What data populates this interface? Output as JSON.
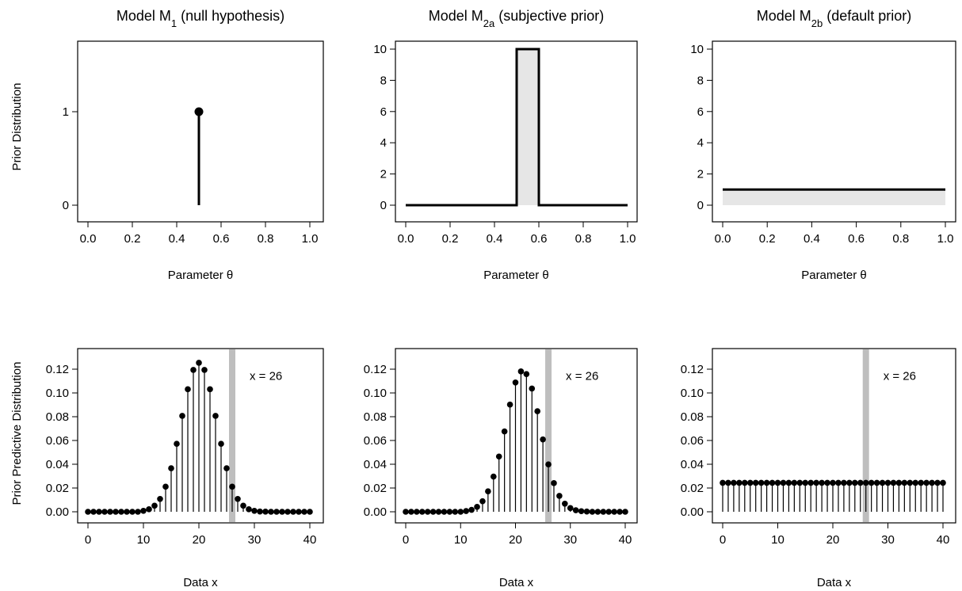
{
  "row_labels": {
    "top_ylabel": "Prior Distribution",
    "bottom_ylabel": "Prior Predictive Distribution"
  },
  "chart_data": [
    {
      "type": "stem",
      "title_parts": [
        {
          "t": "Model M"
        },
        {
          "t": "1",
          "sub": true
        },
        {
          "t": " (null hypothesis)"
        }
      ],
      "xlabel": "Parameter θ",
      "ylabel": "Prior Distribution",
      "xlim": [
        0,
        1
      ],
      "ylim": [
        0,
        1.6
      ],
      "xticks": [
        0.0,
        0.2,
        0.4,
        0.6,
        0.8,
        1.0
      ],
      "xtick_labels": [
        "0.0",
        "0.2",
        "0.4",
        "0.6",
        "0.8",
        "1.0"
      ],
      "yticks": [
        0,
        1
      ],
      "ytick_labels": [
        "0",
        "1"
      ],
      "spike": {
        "x": 0.5,
        "y": 1
      }
    },
    {
      "type": "area",
      "title_parts": [
        {
          "t": "Model M"
        },
        {
          "t": "2a",
          "sub": true
        },
        {
          "t": " (subjective prior)"
        }
      ],
      "xlabel": "Parameter θ",
      "xlim": [
        0,
        1
      ],
      "ylim": [
        0,
        10
      ],
      "xticks": [
        0.0,
        0.2,
        0.4,
        0.6,
        0.8,
        1.0
      ],
      "xtick_labels": [
        "0.0",
        "0.2",
        "0.4",
        "0.6",
        "0.8",
        "1.0"
      ],
      "yticks": [
        0,
        2,
        4,
        6,
        8,
        10
      ],
      "ytick_labels": [
        "0",
        "2",
        "4",
        "6",
        "8",
        "10"
      ],
      "x": [
        0,
        0.5,
        0.5,
        0.6,
        0.6,
        1
      ],
      "y": [
        0,
        0,
        10,
        10,
        0,
        0
      ]
    },
    {
      "type": "area",
      "title_parts": [
        {
          "t": "Model M"
        },
        {
          "t": "2b",
          "sub": true
        },
        {
          "t": " (default prior)"
        }
      ],
      "xlabel": "Parameter θ",
      "xlim": [
        0,
        1
      ],
      "ylim": [
        0,
        10
      ],
      "xticks": [
        0.0,
        0.2,
        0.4,
        0.6,
        0.8,
        1.0
      ],
      "xtick_labels": [
        "0.0",
        "0.2",
        "0.4",
        "0.6",
        "0.8",
        "1.0"
      ],
      "yticks": [
        0,
        2,
        4,
        6,
        8,
        10
      ],
      "ytick_labels": [
        "0",
        "2",
        "4",
        "6",
        "8",
        "10"
      ],
      "x": [
        0,
        1
      ],
      "y": [
        1,
        1
      ]
    },
    {
      "type": "stem",
      "xlabel": "Data x",
      "ylabel": "Prior Predictive Distribution",
      "xlim": [
        0,
        40
      ],
      "ylim": [
        0,
        0.13
      ],
      "xticks": [
        0,
        10,
        20,
        30,
        40
      ],
      "xtick_labels": [
        "0",
        "10",
        "20",
        "30",
        "40"
      ],
      "yticks": [
        0,
        0.02,
        0.04,
        0.06,
        0.08,
        0.1,
        0.12
      ],
      "ytick_labels": [
        "0.00",
        "0.02",
        "0.04",
        "0.06",
        "0.08",
        "0.10",
        "0.12"
      ],
      "observed_x": 26,
      "annotation": "x = 26",
      "x": [
        0,
        1,
        2,
        3,
        4,
        5,
        6,
        7,
        8,
        9,
        10,
        11,
        12,
        13,
        14,
        15,
        16,
        17,
        18,
        19,
        20,
        21,
        22,
        23,
        24,
        25,
        26,
        27,
        28,
        29,
        30,
        31,
        32,
        33,
        34,
        35,
        36,
        37,
        38,
        39,
        40
      ],
      "y": [
        0,
        0,
        0,
        0,
        0,
        0,
        0,
        0,
        0,
        0,
        0.0008,
        0.0021,
        0.0051,
        0.0108,
        0.0211,
        0.0366,
        0.0572,
        0.0807,
        0.1031,
        0.1194,
        0.1254,
        0.1194,
        0.1031,
        0.0807,
        0.0572,
        0.0366,
        0.0211,
        0.0108,
        0.0051,
        0.0021,
        0.0008,
        0.0002,
        0.0001,
        0,
        0,
        0,
        0,
        0,
        0,
        0,
        0
      ]
    },
    {
      "type": "stem",
      "xlabel": "Data x",
      "xlim": [
        0,
        40
      ],
      "ylim": [
        0,
        0.13
      ],
      "xticks": [
        0,
        10,
        20,
        30,
        40
      ],
      "xtick_labels": [
        "0",
        "10",
        "20",
        "30",
        "40"
      ],
      "yticks": [
        0,
        0.02,
        0.04,
        0.06,
        0.08,
        0.1,
        0.12
      ],
      "ytick_labels": [
        "0.00",
        "0.02",
        "0.04",
        "0.06",
        "0.08",
        "0.10",
        "0.12"
      ],
      "observed_x": 26,
      "annotation": "x = 26",
      "x": [
        0,
        1,
        2,
        3,
        4,
        5,
        6,
        7,
        8,
        9,
        10,
        11,
        12,
        13,
        14,
        15,
        16,
        17,
        18,
        19,
        20,
        21,
        22,
        23,
        24,
        25,
        26,
        27,
        28,
        29,
        30,
        31,
        32,
        33,
        34,
        35,
        36,
        37,
        38,
        39,
        40
      ],
      "y": [
        0,
        0,
        0,
        0,
        0,
        0,
        0,
        0,
        0,
        0,
        0,
        0.0006,
        0.0016,
        0.0041,
        0.0089,
        0.0172,
        0.0296,
        0.0465,
        0.0676,
        0.0902,
        0.1088,
        0.1181,
        0.1159,
        0.1037,
        0.0846,
        0.0609,
        0.0399,
        0.0241,
        0.0134,
        0.0068,
        0.0031,
        0.0013,
        0.0005,
        0.0002,
        0,
        0,
        0,
        0,
        0,
        0,
        0
      ]
    },
    {
      "type": "stem",
      "xlabel": "Data x",
      "xlim": [
        0,
        40
      ],
      "ylim": [
        0,
        0.13
      ],
      "xticks": [
        0,
        10,
        20,
        30,
        40
      ],
      "xtick_labels": [
        "0",
        "10",
        "20",
        "30",
        "40"
      ],
      "yticks": [
        0,
        0.02,
        0.04,
        0.06,
        0.08,
        0.1,
        0.12
      ],
      "ytick_labels": [
        "0.00",
        "0.02",
        "0.04",
        "0.06",
        "0.08",
        "0.10",
        "0.12"
      ],
      "observed_x": 26,
      "annotation": "x = 26",
      "x": [
        0,
        1,
        2,
        3,
        4,
        5,
        6,
        7,
        8,
        9,
        10,
        11,
        12,
        13,
        14,
        15,
        16,
        17,
        18,
        19,
        20,
        21,
        22,
        23,
        24,
        25,
        26,
        27,
        28,
        29,
        30,
        31,
        32,
        33,
        34,
        35,
        36,
        37,
        38,
        39,
        40
      ],
      "y": [
        0.0244,
        0.0244,
        0.0244,
        0.0244,
        0.0244,
        0.0244,
        0.0244,
        0.0244,
        0.0244,
        0.0244,
        0.0244,
        0.0244,
        0.0244,
        0.0244,
        0.0244,
        0.0244,
        0.0244,
        0.0244,
        0.0244,
        0.0244,
        0.0244,
        0.0244,
        0.0244,
        0.0244,
        0.0244,
        0.0244,
        0.0244,
        0.0244,
        0.0244,
        0.0244,
        0.0244,
        0.0244,
        0.0244,
        0.0244,
        0.0244,
        0.0244,
        0.0244,
        0.0244,
        0.0244,
        0.0244,
        0.0244
      ]
    }
  ]
}
